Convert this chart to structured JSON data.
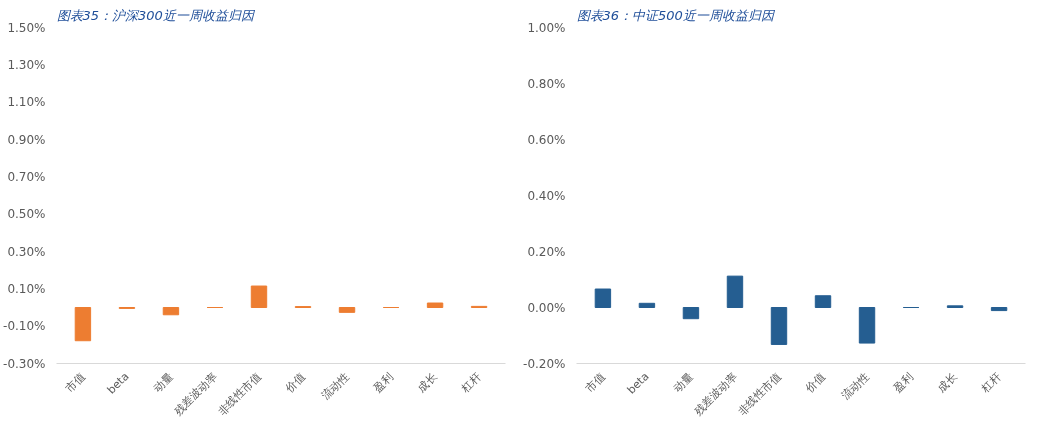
{
  "chart_data": [
    {
      "type": "bar",
      "title": "图表35：沪深300近一周收益归因",
      "categories": [
        "市值",
        "beta",
        "动量",
        "残差波动率",
        "非线性市值",
        "价值",
        "流动性",
        "盈利",
        "成长",
        "杠杆"
      ],
      "series": [
        {
          "color": "#ed7d31",
          "values": [
            -0.178,
            -0.005,
            -0.039,
            0,
            0.115,
            0.005,
            -0.026,
            0,
            0.024,
            0.006
          ]
        }
      ],
      "ylim": [
        -0.3,
        1.5
      ],
      "yticks": [
        {
          "value": -0.3,
          "label": "-0.30%"
        },
        {
          "value": -0.1,
          "label": "-0.10%"
        },
        {
          "value": 0.1,
          "label": "0.10%"
        },
        {
          "value": 0.3,
          "label": "0.30%"
        },
        {
          "value": 0.5,
          "label": "0.50%"
        },
        {
          "value": 0.7,
          "label": "0.70%"
        },
        {
          "value": 0.9,
          "label": "0.90%"
        },
        {
          "value": 1.1,
          "label": "1.10%"
        },
        {
          "value": 1.3,
          "label": "1.30%"
        },
        {
          "value": 1.5,
          "label": "1.50%"
        }
      ],
      "grid": false
    },
    {
      "type": "bar",
      "title": "图表36：中证500近一周收益归因",
      "categories": [
        "市值",
        "beta",
        "动量",
        "残差波动率",
        "非线性市值",
        "价值",
        "流动性",
        "盈利",
        "成长",
        "杠杆"
      ],
      "series": [
        {
          "color": "#255e91",
          "values": [
            0.066,
            0.015,
            -0.04,
            0.112,
            -0.132,
            0.042,
            -0.127,
            0,
            0.006,
            -0.011
          ]
        }
      ],
      "ylim": [
        -0.2,
        1.0
      ],
      "yticks": [
        {
          "value": -0.2,
          "label": "-0.20%"
        },
        {
          "value": 0.0,
          "label": "0.00%"
        },
        {
          "value": 0.2,
          "label": "0.20%"
        },
        {
          "value": 0.4,
          "label": "0.40%"
        },
        {
          "value": 0.6,
          "label": "0.60%"
        },
        {
          "value": 0.8,
          "label": "0.80%"
        },
        {
          "value": 1.0,
          "label": "1.00%"
        }
      ],
      "grid": false
    }
  ]
}
